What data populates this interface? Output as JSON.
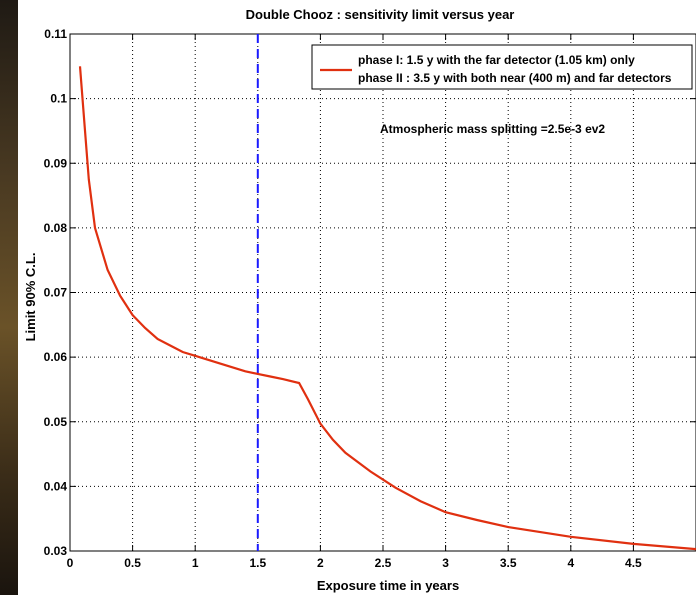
{
  "chart_data": {
    "type": "line",
    "title": "Double Chooz : sensitivity limit versus year",
    "xlabel": "Exposure time in years",
    "ylabel": "Limit 90% C.L.",
    "xlim": [
      0,
      5
    ],
    "ylim": [
      0.03,
      0.11
    ],
    "xticks": [
      "0",
      "0.5",
      "1",
      "1.5",
      "2",
      "2.5",
      "3",
      "3.5",
      "4",
      "4.5"
    ],
    "yticks": [
      "0.03",
      "0.04",
      "0.05",
      "0.06",
      "0.07",
      "0.08",
      "0.09",
      "0.1",
      "0.11"
    ],
    "grid": true,
    "legend_position": "top-right",
    "legend": [
      "phase I: 1.5 y with the far detector (1.05 km) only",
      "phase II : 3.5 y with both near (400 m) and far detectors"
    ],
    "annotation": "Atmospheric mass splitting =2.5e-3 ev2",
    "vline": {
      "x": 1.5,
      "color": "#1a1aff"
    },
    "series": [
      {
        "color": "#e03010",
        "x": [
          0.08,
          0.1,
          0.15,
          0.2,
          0.3,
          0.4,
          0.5,
          0.6,
          0.7,
          0.8,
          0.9,
          1.0,
          1.2,
          1.4,
          1.5,
          1.6,
          1.7,
          1.83,
          1.9,
          2.0,
          2.1,
          2.2,
          2.4,
          2.6,
          2.8,
          3.0,
          3.25,
          3.5,
          4.0,
          4.5,
          5.0
        ],
        "y": [
          0.105,
          0.1,
          0.0875,
          0.08,
          0.0735,
          0.0695,
          0.0665,
          0.0645,
          0.0628,
          0.0618,
          0.0608,
          0.0602,
          0.059,
          0.0578,
          0.0574,
          0.057,
          0.0566,
          0.056,
          0.0535,
          0.0497,
          0.0472,
          0.0452,
          0.0423,
          0.0398,
          0.0377,
          0.036,
          0.0348,
          0.0337,
          0.0322,
          0.0311,
          0.0303
        ]
      }
    ]
  }
}
